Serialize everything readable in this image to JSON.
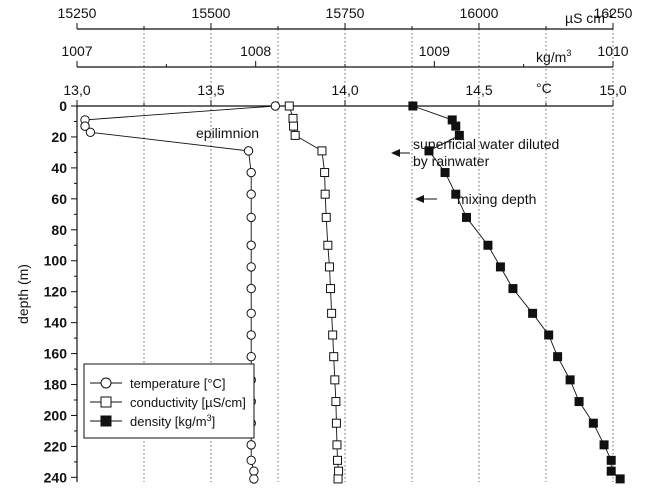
{
  "chart_data": {
    "type": "scatter",
    "ylabel": "depth (m)",
    "y_ticks": [
      "0",
      "20",
      "40",
      "60",
      "80",
      "100",
      "120",
      "140",
      "160",
      "180",
      "200",
      "220",
      "240"
    ],
    "y_range": [
      0,
      243
    ],
    "y_inverted": true,
    "axes": {
      "temperature": {
        "unit": "°C",
        "range": [
          13.0,
          15.0
        ],
        "ticks": [
          "13,0",
          "13,5",
          "14,0",
          "14,5",
          "15,0"
        ],
        "tick_values": [
          13.0,
          13.5,
          14.0,
          14.5,
          15.0
        ]
      },
      "density": {
        "unit_prefix": "kg/m",
        "unit_sup": "3",
        "range": [
          1007,
          1010
        ],
        "ticks": [
          "1007",
          "1008",
          "1009",
          "1010"
        ],
        "tick_values": [
          1007,
          1008,
          1009,
          1010
        ]
      },
      "conductivity": {
        "unit_prefix": "µS cm",
        "unit_sup": "-1",
        "range": [
          15250,
          16250
        ],
        "ticks": [
          "15250",
          "15500",
          "15750",
          "16000",
          "16250"
        ],
        "tick_values": [
          15250,
          15500,
          15750,
          16000,
          16250
        ]
      }
    },
    "grid_vertical_dotted": true,
    "legend": {
      "placement": "bottom-left",
      "entries": [
        {
          "label": "temperature [°C]",
          "marker": "open-circle"
        },
        {
          "label": "conductivity [µS/cm]",
          "marker": "open-square"
        },
        {
          "label_prefix": "density [kg/m",
          "label_sup": "3",
          "label_suffix": "]",
          "marker": "filled-square"
        }
      ]
    },
    "annotations": [
      {
        "text": "epilimnion"
      },
      {
        "lines": [
          "superficial water diluted",
          "by rainwater"
        ],
        "arrow": true
      },
      {
        "text": "mixing depth",
        "arrow": true
      }
    ],
    "series": [
      {
        "marker": "open-circle",
        "axis": "temperature",
        "x": [
          13.74,
          13.03,
          13.03,
          13.05,
          13.64,
          13.65,
          13.65,
          13.65,
          13.65,
          13.65,
          13.65,
          13.65,
          13.65,
          13.65,
          13.65,
          13.65,
          13.65,
          13.65,
          13.65,
          13.66,
          13.66
        ],
        "y": [
          0,
          9,
          13,
          17,
          29,
          43,
          57,
          72,
          90,
          104,
          118,
          134,
          148,
          162,
          177,
          191,
          205,
          219,
          229,
          236,
          241
        ]
      },
      {
        "marker": "open-square",
        "axis": "conductivity",
        "x": [
          15646,
          15653,
          15654,
          15657,
          15707,
          15712,
          15713,
          15715,
          15718,
          15721,
          15723,
          15725,
          15727,
          15729,
          15731,
          15733,
          15734,
          15735,
          15736,
          15738,
          15737
        ],
        "y": [
          0,
          8,
          13,
          19,
          29,
          43,
          57,
          72,
          90,
          104,
          118,
          134,
          148,
          162,
          177,
          191,
          205,
          219,
          229,
          236,
          241
        ]
      },
      {
        "marker": "filled-square",
        "axis": "density",
        "x": [
          1008.88,
          1009.1,
          1009.12,
          1009.14,
          1008.97,
          1009.06,
          1009.12,
          1009.18,
          1009.3,
          1009.37,
          1009.44,
          1009.55,
          1009.64,
          1009.69,
          1009.76,
          1009.81,
          1009.89,
          1009.95,
          1009.99,
          1009.99,
          1010.04
        ],
        "y": [
          0,
          9,
          13,
          19,
          29,
          43,
          57,
          72,
          90,
          104,
          118,
          134,
          148,
          162,
          177,
          191,
          205,
          219,
          229,
          236,
          241
        ]
      }
    ]
  }
}
